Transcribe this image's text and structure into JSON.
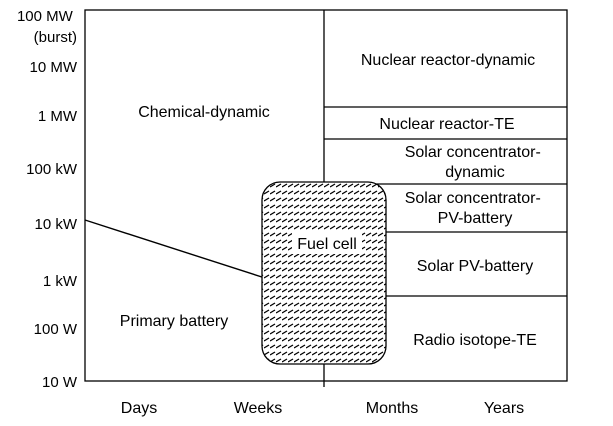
{
  "y_axis": {
    "ticks": [
      {
        "label_lines": [
          "100 MW",
          "(burst)"
        ]
      },
      {
        "label_lines": [
          "10 MW"
        ]
      },
      {
        "label_lines": [
          "1 MW"
        ]
      },
      {
        "label_lines": [
          "100 kW"
        ]
      },
      {
        "label_lines": [
          "10 kW"
        ]
      },
      {
        "label_lines": [
          "1 kW"
        ]
      },
      {
        "label_lines": [
          "100 W"
        ]
      },
      {
        "label_lines": [
          "10 W"
        ]
      }
    ]
  },
  "x_axis": {
    "ticks": [
      "Days",
      "Weeks",
      "Months",
      "Years"
    ]
  },
  "regions": {
    "chemical_dynamic": [
      "Chemical-dynamic"
    ],
    "primary_battery": [
      "Primary battery"
    ],
    "nuclear_reactor_dynamic": [
      "Nuclear reactor-dynamic"
    ],
    "nuclear_reactor_te": [
      "Nuclear reactor-TE"
    ],
    "solar_concentrator_dynamic": [
      "Solar concentrator-",
      "dynamic"
    ],
    "solar_concentrator_pv_battery": [
      "Solar concentrator-",
      "PV-battery"
    ],
    "solar_pv_battery": [
      "Solar PV-battery"
    ],
    "radio_isotope_te": [
      "Radio isotope-TE"
    ],
    "fuel_cell": [
      "Fuel cell"
    ]
  },
  "colors": {
    "line": "#000000",
    "background": "#ffffff",
    "hatch": "#000000"
  }
}
